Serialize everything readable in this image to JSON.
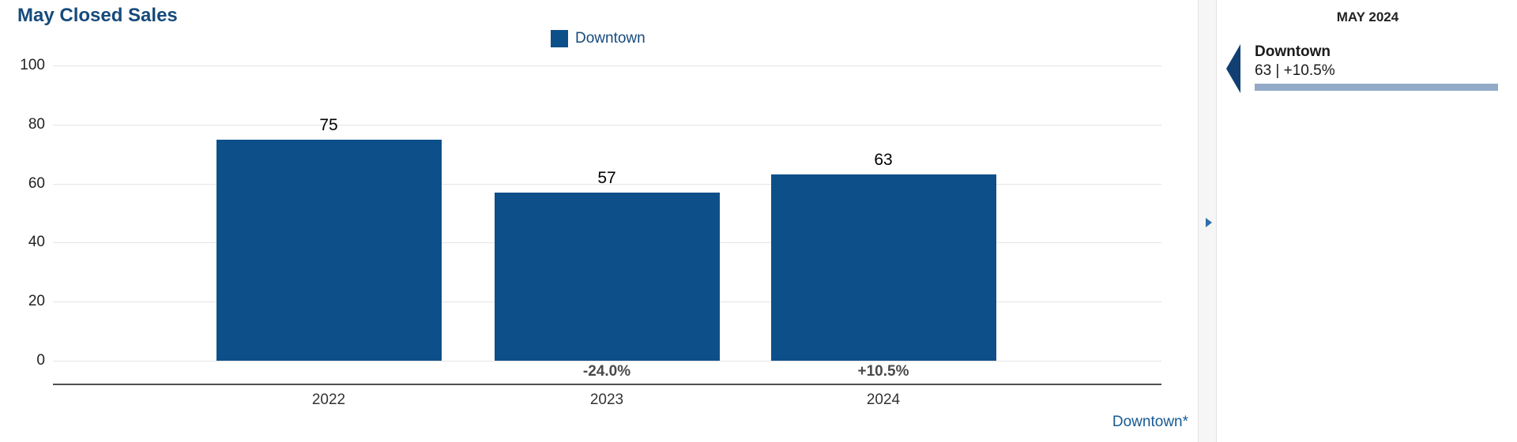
{
  "chart_data": {
    "type": "bar",
    "title": "May Closed Sales",
    "categories": [
      "2022",
      "2023",
      "2024"
    ],
    "series": [
      {
        "name": "Downtown",
        "values": [
          75,
          57,
          63
        ]
      }
    ],
    "change_labels": [
      "",
      "-24.0%",
      "+10.5%"
    ],
    "ylim": [
      0,
      100
    ],
    "yticks": [
      0,
      20,
      40,
      60,
      80,
      100
    ],
    "grid": "horizontal",
    "legend_position": "top-center",
    "legend": [
      "Downtown"
    ],
    "footnote_link": "Downtown*"
  },
  "side_panel": {
    "header": "MAY 2024",
    "item": {
      "name": "Downtown",
      "value_text": "63 | +10.5%"
    }
  },
  "colors": {
    "bar": "#0d4f89",
    "title": "#164a7c",
    "link": "#175a94",
    "accent": "#93aac8",
    "marker": "#123f72"
  }
}
